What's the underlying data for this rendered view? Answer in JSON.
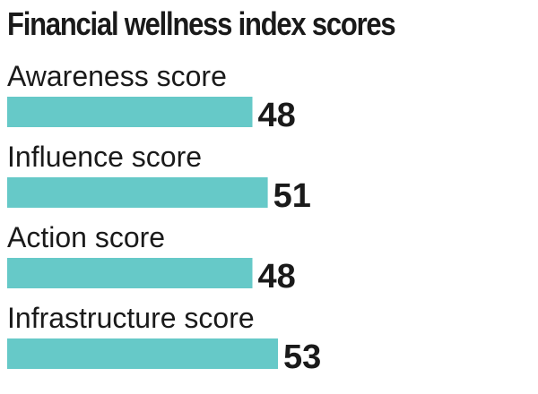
{
  "chart_data": {
    "type": "bar",
    "orientation": "horizontal",
    "title": "Financial wellness index scores",
    "categories": [
      "Awareness score",
      "Influence score",
      "Action score",
      "Infrastructure score"
    ],
    "values": [
      48,
      51,
      48,
      53
    ],
    "xlim": [
      0,
      53
    ],
    "grid": false,
    "colors": {
      "bar": "#66c9c8",
      "text": "#1a1a1a"
    }
  }
}
